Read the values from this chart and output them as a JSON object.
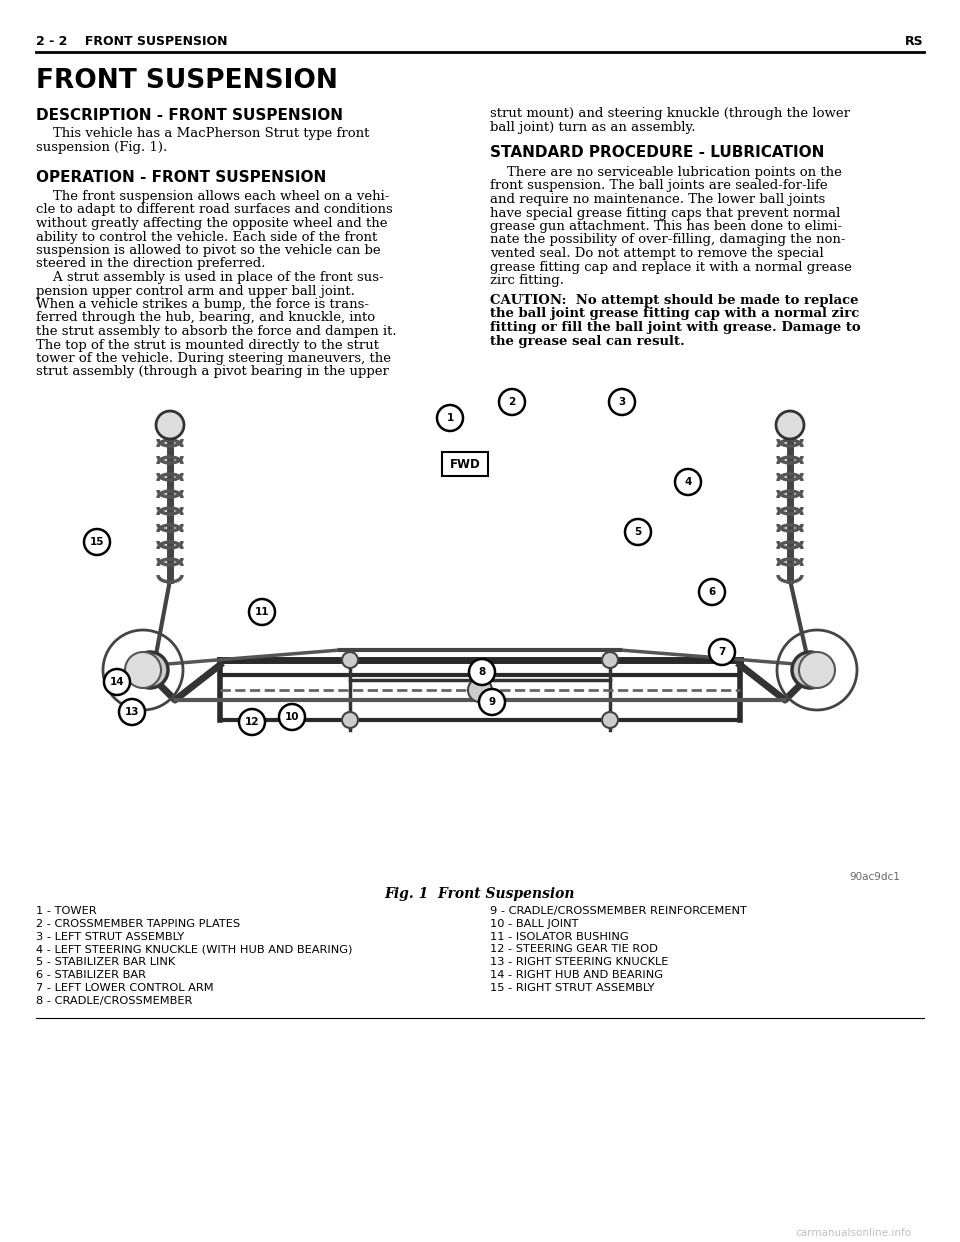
{
  "bg_color": "#ffffff",
  "text_color": "#000000",
  "header_left": "2 - 2    FRONT SUSPENSION",
  "header_right": "RS",
  "page_title": "FRONT SUSPENSION",
  "section1_title": "DESCRIPTION - FRONT SUSPENSION",
  "section1_body_lines": [
    "    This vehicle has a MacPherson Strut type front",
    "suspension (Fig. 1)."
  ],
  "section2_title": "OPERATION - FRONT SUSPENSION",
  "section2_body_lines": [
    "    The front suspension allows each wheel on a vehi-",
    "cle to adapt to different road surfaces and conditions",
    "without greatly affecting the opposite wheel and the",
    "ability to control the vehicle. Each side of the front",
    "suspension is allowed to pivot so the vehicle can be",
    "steered in the direction preferred.",
    "    A strut assembly is used in place of the front sus-",
    "pension upper control arm and upper ball joint.",
    "When a vehicle strikes a bump, the force is trans-",
    "ferred through the hub, bearing, and knuckle, into",
    "the strut assembly to absorb the force and dampen it.",
    "The top of the strut is mounted directly to the strut",
    "tower of the vehicle. During steering maneuvers, the",
    "strut assembly (through a pivot bearing in the upper"
  ],
  "right_col_top_lines": [
    "strut mount) and steering knuckle (through the lower",
    "ball joint) turn as an assembly."
  ],
  "section3_title": "STANDARD PROCEDURE - LUBRICATION",
  "section3_body_lines": [
    "    There are no serviceable lubrication points on the",
    "front suspension. The ball joints are sealed-for-life",
    "and require no maintenance. The lower ball joints",
    "have special grease fitting caps that prevent normal",
    "grease gun attachment. This has been done to elimi-",
    "nate the possibility of over-filling, damaging the non-",
    "vented seal. Do not attempt to remove the special",
    "grease fitting cap and replace it with a normal grease",
    "zirc fitting."
  ],
  "caution_lines": [
    "CAUTION:  No attempt should be made to replace",
    "the ball joint grease fitting cap with a normal zirc",
    "fitting or fill the ball joint with grease. Damage to",
    "the grease seal can result."
  ],
  "fig_caption": "Fig. 1  Front Suspension",
  "legend_left": [
    "1 - TOWER",
    "2 - CROSSMEMBER TAPPING PLATES",
    "3 - LEFT STRUT ASSEMBLY",
    "4 - LEFT STEERING KNUCKLE (WITH HUB AND BEARING)",
    "5 - STABILIZER BAR LINK",
    "6 - STABILIZER BAR",
    "7 - LEFT LOWER CONTROL ARM",
    "8 - CRADLE/CROSSMEMBER"
  ],
  "legend_right": [
    "9 - CRADLE/CROSSMEMBER REINFORCEMENT",
    "10 - BALL JOINT",
    "11 - ISOLATOR BUSHING",
    "12 - STEERING GEAR TIE ROD",
    "13 - RIGHT STEERING KNUCKLE",
    "14 - RIGHT HUB AND BEARING",
    "15 - RIGHT STRUT ASSEMBLY"
  ],
  "watermark": "carmanualsonline.info",
  "diagram_ref": "90ac9dc1",
  "callouts": [
    [
      450,
      418,
      "1"
    ],
    [
      512,
      402,
      "2"
    ],
    [
      622,
      402,
      "3"
    ],
    [
      688,
      482,
      "4"
    ],
    [
      638,
      532,
      "5"
    ],
    [
      712,
      592,
      "6"
    ],
    [
      722,
      652,
      "7"
    ],
    [
      482,
      672,
      "8"
    ],
    [
      492,
      702,
      "9"
    ],
    [
      292,
      717,
      "10"
    ],
    [
      262,
      612,
      "11"
    ],
    [
      252,
      722,
      "12"
    ],
    [
      132,
      712,
      "13"
    ],
    [
      117,
      682,
      "14"
    ],
    [
      97,
      542,
      "15"
    ]
  ]
}
